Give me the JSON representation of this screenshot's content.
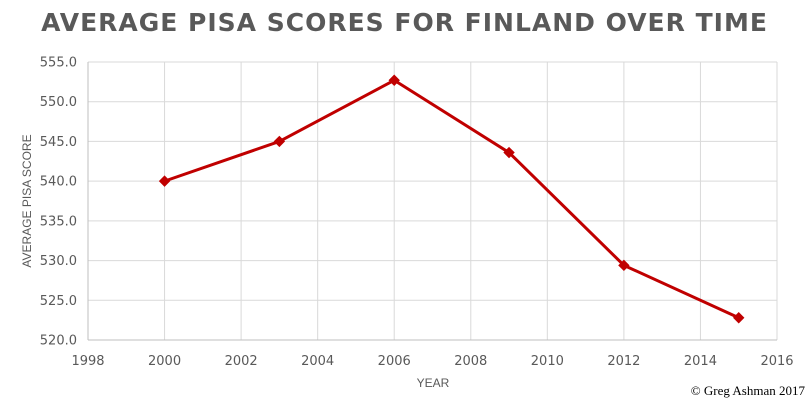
{
  "chart_data": {
    "type": "line",
    "title": "AVERAGE PISA SCORES FOR FINLAND OVER TIME",
    "xlabel": "YEAR",
    "ylabel": "AVERAGE PISA SCORE",
    "xlim": [
      1998,
      2016
    ],
    "ylim": [
      520,
      555
    ],
    "x_ticks": [
      "1998",
      "2000",
      "2002",
      "2004",
      "2006",
      "2008",
      "2010",
      "2012",
      "2014",
      "2016"
    ],
    "y_ticks": [
      "520.0",
      "525.0",
      "530.0",
      "535.0",
      "540.0",
      "545.0",
      "550.0",
      "555.0"
    ],
    "grid": true,
    "legend": "none",
    "series": [
      {
        "x": [
          2000,
          2003,
          2006,
          2009,
          2012,
          2015
        ],
        "y": [
          540.0,
          545.0,
          552.7,
          543.6,
          529.4,
          522.8
        ],
        "color": "#C00000",
        "marker": "diamond"
      }
    ]
  },
  "footer": {
    "copyright": "© Greg Ashman 2017"
  }
}
